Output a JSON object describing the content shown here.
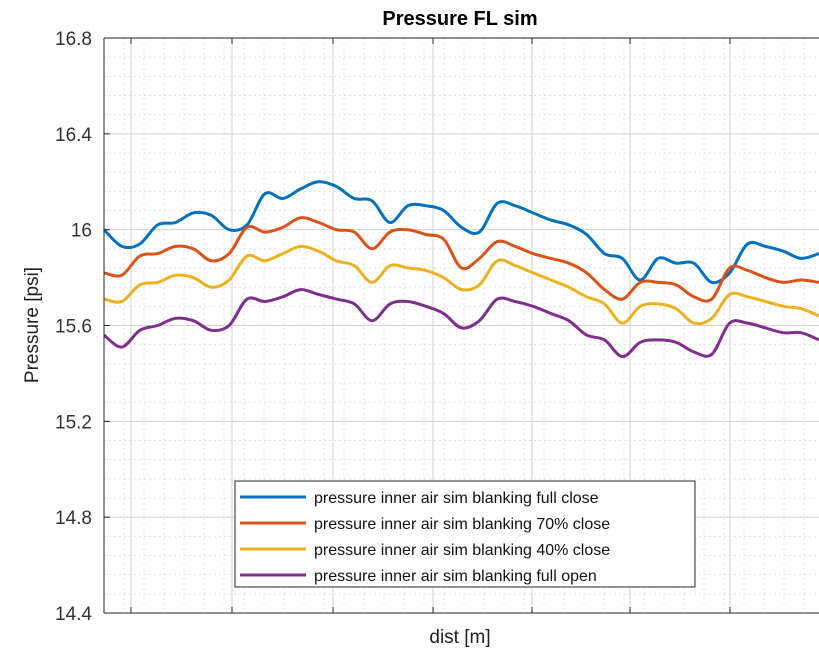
{
  "chart_data": {
    "type": "line",
    "title": "Pressure FL sim",
    "xlabel": "dist [m]",
    "ylabel": "Pressure [psi]",
    "ylim": [
      14.4,
      16.8
    ],
    "yticks": [
      14.4,
      14.8,
      15.2,
      15.6,
      16,
      16.4,
      16.8
    ],
    "ytick_labels": [
      "14.4",
      "14.8",
      "15.2",
      "15.6",
      "16",
      "16.4",
      "16.8"
    ],
    "xtick_labels": [],
    "grid": "major and minor",
    "legend_position": "bottom-center",
    "series": [
      {
        "name": "pressure inner air sim blanking full close",
        "color": "#0072BD",
        "values": [
          16.0,
          15.93,
          15.94,
          16.02,
          16.03,
          16.07,
          16.06,
          16.0,
          16.02,
          16.15,
          16.13,
          16.17,
          16.2,
          16.18,
          16.13,
          16.12,
          16.03,
          16.1,
          16.1,
          16.08,
          16.01,
          15.99,
          16.11,
          16.1,
          16.07,
          16.04,
          16.02,
          15.98,
          15.9,
          15.88,
          15.79,
          15.88,
          15.86,
          15.86,
          15.78,
          15.82,
          15.94,
          15.93,
          15.91,
          15.88,
          15.9
        ]
      },
      {
        "name": "pressure inner air sim blanking 70% close",
        "color": "#D95319",
        "values": [
          15.82,
          15.81,
          15.89,
          15.9,
          15.93,
          15.92,
          15.87,
          15.9,
          16.01,
          15.99,
          16.01,
          16.05,
          16.03,
          16.0,
          15.99,
          15.92,
          15.99,
          16.0,
          15.98,
          15.96,
          15.84,
          15.88,
          15.95,
          15.93,
          15.9,
          15.88,
          15.86,
          15.82,
          15.75,
          15.71,
          15.78,
          15.78,
          15.77,
          15.72,
          15.71,
          15.84,
          15.83,
          15.8,
          15.78,
          15.79,
          15.78
        ]
      },
      {
        "name": "pressure inner air sim blanking 40% close",
        "color": "#EDB120",
        "values": [
          15.71,
          15.7,
          15.77,
          15.78,
          15.81,
          15.8,
          15.76,
          15.79,
          15.89,
          15.87,
          15.9,
          15.93,
          15.91,
          15.87,
          15.85,
          15.78,
          15.85,
          15.84,
          15.83,
          15.8,
          15.75,
          15.77,
          15.87,
          15.85,
          15.82,
          15.79,
          15.76,
          15.72,
          15.69,
          15.61,
          15.68,
          15.69,
          15.67,
          15.61,
          15.63,
          15.73,
          15.72,
          15.7,
          15.68,
          15.67,
          15.64
        ]
      },
      {
        "name": "pressure inner air sim blanking full open",
        "color": "#7E2F8E",
        "values": [
          15.56,
          15.51,
          15.58,
          15.6,
          15.63,
          15.62,
          15.58,
          15.6,
          15.71,
          15.7,
          15.72,
          15.75,
          15.73,
          15.71,
          15.69,
          15.62,
          15.69,
          15.7,
          15.68,
          15.65,
          15.59,
          15.62,
          15.71,
          15.7,
          15.68,
          15.65,
          15.62,
          15.56,
          15.54,
          15.47,
          15.53,
          15.54,
          15.53,
          15.49,
          15.48,
          15.61,
          15.61,
          15.59,
          15.57,
          15.57,
          15.54
        ]
      }
    ]
  }
}
